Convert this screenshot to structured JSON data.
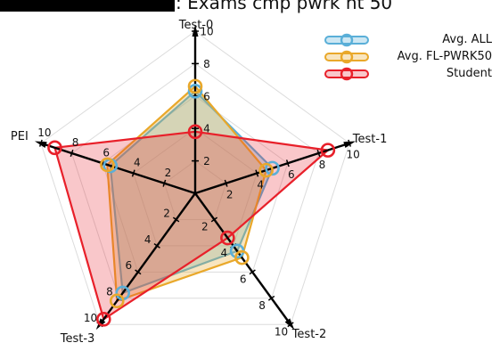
{
  "title": ": Exams cmp pwrk nt 50",
  "chart_data": {
    "type": "radar",
    "title": ": Exams cmp pwrk nt 50",
    "axes": [
      "Test-0",
      "Test-1",
      "Test-2",
      "Test-3",
      "PEI"
    ],
    "tick_labels": [
      "2",
      "4",
      "6",
      "8",
      "10"
    ],
    "rmax": 10,
    "grid": true,
    "legend_position": "top-right",
    "series": [
      {
        "name": "Avg. ALL",
        "values": [
          6.3,
          5.0,
          4.4,
          7.6,
          5.5
        ],
        "color": "#5aafd8",
        "fill": "rgba(90,175,216,0.30)"
      },
      {
        "name": "Avg. FL-PWRK50",
        "values": [
          6.6,
          4.6,
          4.9,
          8.2,
          5.7
        ],
        "color": "#e9a82a",
        "fill": "rgba(233,168,42,0.30)"
      },
      {
        "name": "Student",
        "values": [
          3.8,
          8.6,
          3.4,
          9.6,
          9.1
        ],
        "color": "#e8202a",
        "fill": "rgba(232,32,42,0.25)"
      }
    ]
  }
}
